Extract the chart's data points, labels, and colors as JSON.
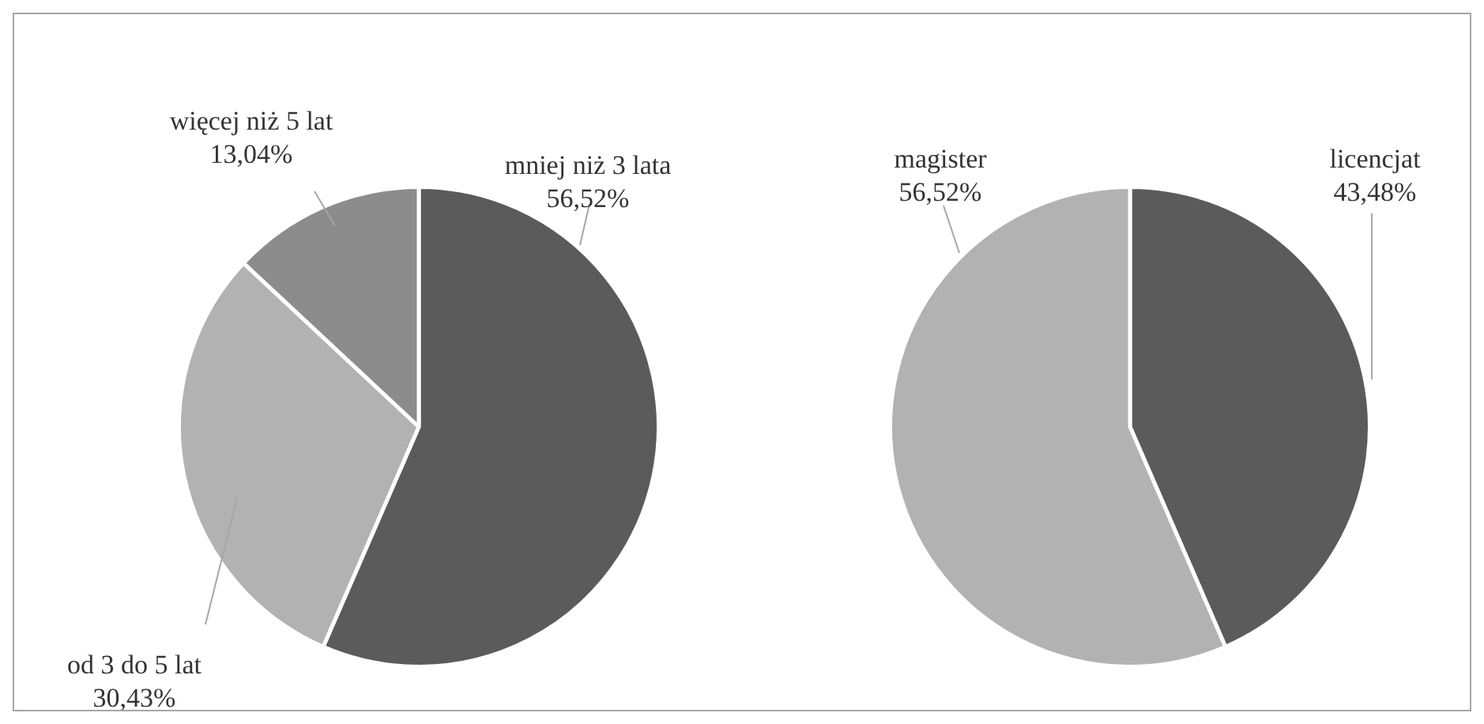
{
  "chart_data": [
    {
      "type": "pie",
      "categories": [
        "mniej niż 3 lata",
        "od 3 do 5 lat",
        "więcej niż 5 lat"
      ],
      "values": [
        56.52,
        30.43,
        13.04
      ],
      "value_labels": [
        "56,52%",
        "30,43%",
        "13,04%"
      ],
      "colors": [
        "#5b5b5b",
        "#b2b2b2",
        "#8c8c8c"
      ],
      "legend": false
    },
    {
      "type": "pie",
      "categories": [
        "licencjat",
        "magister"
      ],
      "values": [
        43.48,
        56.52
      ],
      "value_labels": [
        "43,48%",
        "56,52%"
      ],
      "colors": [
        "#5b5b5b",
        "#b2b2b2"
      ],
      "legend": false
    }
  ]
}
